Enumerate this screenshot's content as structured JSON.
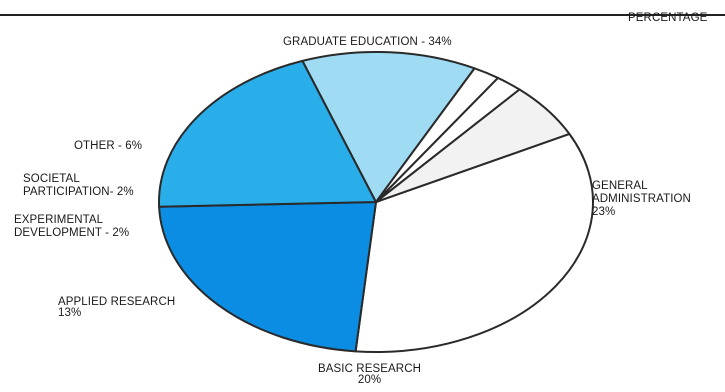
{
  "chart_data": {
    "type": "pie",
    "title": "",
    "unit_label": "PERCENTAGE",
    "slices": [
      {
        "name": "GRADUATE EDUCATION",
        "value": 34,
        "color": "#ffffff",
        "label_lines": [
          "GRADUATE EDUCATION - 34%"
        ]
      },
      {
        "name": "GENERAL ADMINISTRATION",
        "value": 23,
        "color": "#0a8de2",
        "label_lines": [
          "GENERAL",
          "ADMINISTRATION",
          "23%"
        ]
      },
      {
        "name": "BASIC RESEARCH",
        "value": 20,
        "color": "#2aaeea",
        "label_lines": [
          "BASIC RESEARCH",
          "20%"
        ]
      },
      {
        "name": "APPLIED RESEARCH",
        "value": 13,
        "color": "#9fdcf4",
        "label_lines": [
          "APPLIED RESEARCH",
          "13%"
        ]
      },
      {
        "name": "EXPERIMENTAL DEVELOPMENT",
        "value": 2,
        "color": "#ffffff",
        "label_lines": [
          "EXPERIMENTAL",
          "DEVELOPMENT - 2%"
        ]
      },
      {
        "name": "SOCIETAL PARTICIPATION",
        "value": 2,
        "color": "#ffffff",
        "label_lines": [
          "SOCIETAL",
          "PARTICIPATION- 2%"
        ]
      },
      {
        "name": "OTHER",
        "value": 6,
        "color": "#f2f2f2",
        "label_lines": [
          "OTHER - 6%"
        ]
      }
    ]
  }
}
